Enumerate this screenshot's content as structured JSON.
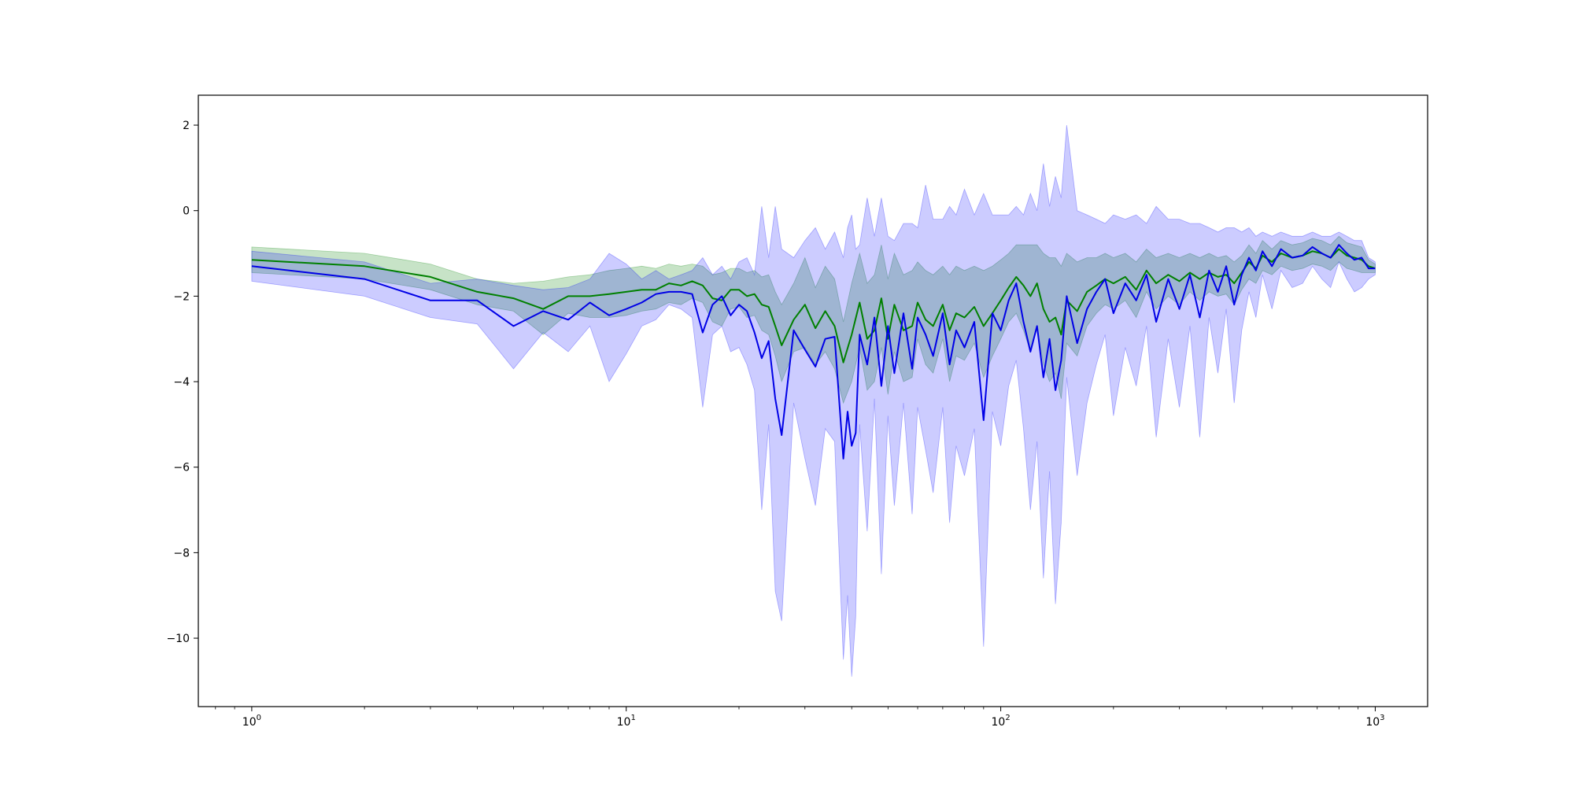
{
  "chart_data": {
    "type": "line",
    "title": "",
    "xlabel": "",
    "ylabel": "",
    "x_scale": "log",
    "xlim": [
      0.72,
      1380
    ],
    "ylim": [
      -11.6,
      2.7
    ],
    "grid": false,
    "legend": "none",
    "x_ticks": [
      {
        "value": 1,
        "base": "10",
        "exp": "0"
      },
      {
        "value": 10,
        "base": "10",
        "exp": "1"
      },
      {
        "value": 100,
        "base": "10",
        "exp": "2"
      },
      {
        "value": 1000,
        "base": "10",
        "exp": "3"
      }
    ],
    "y_ticks": [
      {
        "value": 2,
        "label": "2"
      },
      {
        "value": 0,
        "label": "0"
      },
      {
        "value": -2,
        "label": "−2"
      },
      {
        "value": -4,
        "label": "−4"
      },
      {
        "value": -6,
        "label": "−6"
      },
      {
        "value": -8,
        "label": "−8"
      },
      {
        "value": -10,
        "label": "−10"
      }
    ],
    "series": [
      {
        "color": "#008000",
        "band_color": "#008000",
        "band_opacity": 0.22,
        "x": [
          1,
          2,
          3,
          4,
          5,
          6,
          7,
          8,
          9,
          10,
          11,
          12,
          13,
          14,
          15,
          16,
          17,
          18,
          19,
          20,
          21,
          22,
          23,
          24,
          25,
          26,
          28,
          30,
          32,
          34,
          36,
          38,
          40,
          42,
          44,
          46,
          48,
          50,
          52,
          55,
          58,
          60,
          63,
          66,
          70,
          73,
          76,
          80,
          85,
          90,
          95,
          100,
          105,
          110,
          115,
          120,
          125,
          130,
          135,
          140,
          145,
          150,
          160,
          170,
          180,
          190,
          200,
          215,
          230,
          245,
          260,
          280,
          300,
          320,
          340,
          360,
          380,
          400,
          420,
          440,
          460,
          480,
          500,
          530,
          560,
          600,
          640,
          680,
          720,
          760,
          800,
          840,
          880,
          920,
          960,
          1000
        ],
        "y": [
          -1.15,
          -1.3,
          -1.55,
          -1.9,
          -2.05,
          -2.3,
          -2.0,
          -2.0,
          -1.95,
          -1.9,
          -1.85,
          -1.85,
          -1.7,
          -1.75,
          -1.65,
          -1.75,
          -2.05,
          -2.1,
          -1.85,
          -1.85,
          -2.0,
          -1.95,
          -2.2,
          -2.25,
          -2.7,
          -3.15,
          -2.55,
          -2.2,
          -2.75,
          -2.35,
          -2.7,
          -3.55,
          -2.9,
          -2.15,
          -3.0,
          -2.8,
          -2.05,
          -3.0,
          -2.2,
          -2.8,
          -2.7,
          -2.15,
          -2.55,
          -2.7,
          -2.2,
          -2.8,
          -2.4,
          -2.5,
          -2.25,
          -2.7,
          -2.4,
          -2.1,
          -1.8,
          -1.55,
          -1.75,
          -2.0,
          -1.7,
          -2.3,
          -2.6,
          -2.5,
          -2.9,
          -2.1,
          -2.35,
          -1.9,
          -1.75,
          -1.6,
          -1.7,
          -1.55,
          -1.85,
          -1.4,
          -1.7,
          -1.5,
          -1.65,
          -1.45,
          -1.6,
          -1.45,
          -1.55,
          -1.5,
          -1.7,
          -1.45,
          -1.2,
          -1.35,
          -1.05,
          -1.2,
          -1.0,
          -1.1,
          -1.05,
          -0.95,
          -1.0,
          -1.1,
          -0.9,
          -1.05,
          -1.1,
          -1.15,
          -1.3,
          -1.35
        ],
        "lower": [
          -1.45,
          -1.6,
          -1.85,
          -2.2,
          -2.35,
          -2.9,
          -2.4,
          -2.5,
          -2.5,
          -2.45,
          -2.35,
          -2.3,
          -2.15,
          -2.2,
          -2.05,
          -2.15,
          -2.6,
          -2.7,
          -2.3,
          -2.25,
          -2.5,
          -2.45,
          -2.8,
          -2.9,
          -3.4,
          -4.0,
          -3.3,
          -3.2,
          -3.6,
          -3.3,
          -3.7,
          -4.5,
          -4.0,
          -3.2,
          -4.2,
          -4.0,
          -3.2,
          -4.3,
          -3.3,
          -4.0,
          -3.9,
          -3.0,
          -3.6,
          -3.8,
          -3.0,
          -4.0,
          -3.4,
          -3.5,
          -3.1,
          -3.9,
          -3.4,
          -3.0,
          -2.6,
          -2.4,
          -2.8,
          -3.3,
          -2.7,
          -3.6,
          -4.0,
          -3.8,
          -4.4,
          -3.1,
          -3.4,
          -2.7,
          -2.4,
          -2.2,
          -2.3,
          -2.1,
          -2.5,
          -1.9,
          -2.3,
          -2.0,
          -2.2,
          -1.9,
          -2.1,
          -1.9,
          -2.0,
          -1.95,
          -2.2,
          -1.85,
          -1.6,
          -1.7,
          -1.4,
          -1.5,
          -1.3,
          -1.4,
          -1.35,
          -1.25,
          -1.3,
          -1.4,
          -1.2,
          -1.35,
          -1.4,
          -1.45,
          -1.45,
          -1.45
        ],
        "upper": [
          -0.85,
          -1.0,
          -1.25,
          -1.6,
          -1.7,
          -1.65,
          -1.55,
          -1.5,
          -1.4,
          -1.35,
          -1.3,
          -1.35,
          -1.25,
          -1.3,
          -1.25,
          -1.3,
          -1.5,
          -1.45,
          -1.35,
          -1.35,
          -1.45,
          -1.4,
          -1.55,
          -1.5,
          -1.9,
          -2.2,
          -1.7,
          -1.1,
          -1.8,
          -1.3,
          -1.6,
          -2.6,
          -1.7,
          -1.0,
          -1.7,
          -1.5,
          -0.8,
          -1.6,
          -1.0,
          -1.5,
          -1.4,
          -1.2,
          -1.4,
          -1.5,
          -1.3,
          -1.5,
          -1.3,
          -1.4,
          -1.3,
          -1.4,
          -1.3,
          -1.15,
          -1.0,
          -0.8,
          -0.8,
          -0.8,
          -0.8,
          -1.0,
          -1.1,
          -1.1,
          -1.3,
          -1.0,
          -1.2,
          -1.1,
          -1.1,
          -1.0,
          -1.1,
          -1.0,
          -1.2,
          -0.9,
          -1.1,
          -1.0,
          -1.1,
          -1.0,
          -1.1,
          -1.0,
          -1.1,
          -1.05,
          -1.2,
          -1.05,
          -0.8,
          -1.0,
          -0.7,
          -0.9,
          -0.7,
          -0.8,
          -0.75,
          -0.65,
          -0.7,
          -0.8,
          -0.6,
          -0.75,
          -0.8,
          -0.85,
          -1.15,
          -1.25
        ]
      },
      {
        "color": "#0000e6",
        "band_color": "#0000ff",
        "band_opacity": 0.2,
        "x": [
          1,
          2,
          3,
          4,
          5,
          6,
          7,
          8,
          9,
          10,
          11,
          12,
          13,
          14,
          15,
          16,
          17,
          18,
          19,
          20,
          21,
          22,
          23,
          24,
          25,
          26,
          28,
          30,
          32,
          34,
          36,
          38,
          39,
          40,
          41,
          42,
          44,
          46,
          48,
          50,
          52,
          55,
          58,
          60,
          63,
          66,
          70,
          73,
          76,
          80,
          85,
          90,
          95,
          100,
          105,
          110,
          115,
          120,
          125,
          130,
          135,
          140,
          145,
          150,
          160,
          170,
          180,
          190,
          200,
          215,
          230,
          245,
          260,
          280,
          300,
          320,
          340,
          360,
          380,
          400,
          420,
          440,
          460,
          480,
          500,
          530,
          560,
          600,
          640,
          680,
          720,
          760,
          800,
          840,
          880,
          920,
          960,
          1000
        ],
        "y": [
          -1.3,
          -1.6,
          -2.1,
          -2.1,
          -2.7,
          -2.35,
          -2.55,
          -2.15,
          -2.45,
          -2.3,
          -2.15,
          -1.95,
          -1.9,
          -1.9,
          -1.95,
          -2.85,
          -2.2,
          -2.0,
          -2.45,
          -2.2,
          -2.35,
          -2.85,
          -3.45,
          -3.05,
          -4.4,
          -5.25,
          -2.8,
          -3.25,
          -3.65,
          -3.0,
          -2.95,
          -5.8,
          -4.7,
          -5.5,
          -5.2,
          -2.9,
          -3.6,
          -2.5,
          -4.1,
          -2.7,
          -3.8,
          -2.4,
          -3.7,
          -2.5,
          -2.9,
          -3.4,
          -2.4,
          -3.6,
          -2.8,
          -3.2,
          -2.6,
          -4.9,
          -2.4,
          -2.8,
          -2.1,
          -1.7,
          -2.6,
          -3.3,
          -2.7,
          -3.9,
          -3.0,
          -4.2,
          -3.5,
          -2.0,
          -3.1,
          -2.3,
          -1.9,
          -1.6,
          -2.4,
          -1.7,
          -2.1,
          -1.5,
          -2.6,
          -1.6,
          -2.3,
          -1.5,
          -2.5,
          -1.4,
          -1.9,
          -1.3,
          -2.2,
          -1.5,
          -1.1,
          -1.4,
          -0.95,
          -1.3,
          -0.9,
          -1.1,
          -1.05,
          -0.85,
          -1.0,
          -1.1,
          -0.8,
          -1.0,
          -1.15,
          -1.1,
          -1.35,
          -1.35
        ],
        "lower": [
          -1.65,
          -2.0,
          -2.5,
          -2.65,
          -3.7,
          -2.85,
          -3.3,
          -2.7,
          -4.0,
          -3.35,
          -2.7,
          -2.55,
          -2.2,
          -2.3,
          -2.5,
          -4.6,
          -2.9,
          -2.7,
          -3.3,
          -3.2,
          -3.6,
          -4.2,
          -7.0,
          -5.0,
          -8.9,
          -9.6,
          -4.5,
          -5.8,
          -6.9,
          -5.1,
          -5.4,
          -10.5,
          -9.0,
          -10.9,
          -9.5,
          -5.0,
          -7.5,
          -4.4,
          -8.5,
          -4.8,
          -6.9,
          -4.5,
          -7.1,
          -4.6,
          -5.6,
          -6.6,
          -4.6,
          -7.3,
          -5.5,
          -6.2,
          -5.1,
          -10.2,
          -4.7,
          -5.5,
          -4.1,
          -3.5,
          -5.1,
          -7.0,
          -5.4,
          -8.6,
          -6.1,
          -9.2,
          -7.3,
          -3.9,
          -6.2,
          -4.5,
          -3.6,
          -2.9,
          -4.8,
          -3.2,
          -4.1,
          -2.7,
          -5.3,
          -3.0,
          -4.6,
          -2.7,
          -5.3,
          -2.5,
          -3.8,
          -2.3,
          -4.5,
          -2.8,
          -1.9,
          -2.5,
          -1.5,
          -2.3,
          -1.4,
          -1.8,
          -1.7,
          -1.3,
          -1.6,
          -1.8,
          -1.2,
          -1.6,
          -1.9,
          -1.8,
          -1.6,
          -1.5
        ],
        "upper": [
          -0.95,
          -1.2,
          -1.7,
          -1.6,
          -1.75,
          -1.85,
          -1.8,
          -1.6,
          -1.0,
          -1.25,
          -1.6,
          -1.4,
          -1.6,
          -1.5,
          -1.4,
          -1.1,
          -1.5,
          -1.3,
          -1.6,
          -1.2,
          -1.1,
          -1.5,
          0.1,
          -1.1,
          0.1,
          -0.9,
          -1.1,
          -0.7,
          -0.4,
          -0.9,
          -0.5,
          -1.1,
          -0.4,
          -0.1,
          -0.9,
          -0.8,
          0.3,
          -0.6,
          0.3,
          -0.6,
          -0.7,
          -0.3,
          -0.3,
          -0.4,
          0.6,
          -0.2,
          -0.2,
          0.1,
          -0.1,
          0.5,
          -0.1,
          0.4,
          -0.1,
          -0.1,
          -0.1,
          0.1,
          -0.1,
          0.4,
          0.0,
          1.1,
          0.1,
          0.8,
          0.3,
          2.0,
          0.0,
          -0.1,
          -0.2,
          -0.3,
          -0.1,
          -0.2,
          -0.1,
          -0.3,
          0.1,
          -0.2,
          -0.2,
          -0.3,
          -0.3,
          -0.4,
          -0.5,
          -0.4,
          -0.4,
          -0.5,
          -0.4,
          -0.6,
          -0.5,
          -0.6,
          -0.5,
          -0.6,
          -0.6,
          -0.5,
          -0.6,
          -0.6,
          -0.5,
          -0.6,
          -0.7,
          -0.7,
          -1.1,
          -1.2
        ]
      }
    ]
  }
}
